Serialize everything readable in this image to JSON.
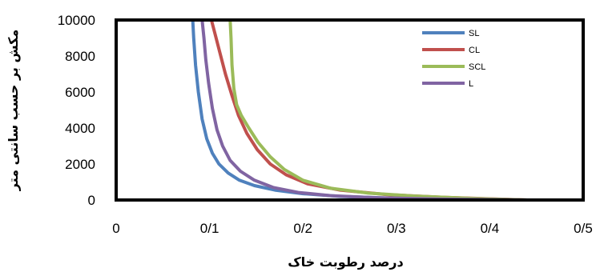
{
  "chart_data": {
    "type": "line",
    "title": "",
    "xlabel": "درصد رطوبت خاک",
    "ylabel": "مکش بر حسب سانتی متر",
    "xlim": [
      0,
      0.5
    ],
    "ylim": [
      0,
      10000
    ],
    "x_ticks": [
      "0",
      "0/1",
      "0/2",
      "0/3",
      "0/4",
      "0/5"
    ],
    "y_ticks": [
      "0",
      "2000",
      "4000",
      "6000",
      "8000",
      "10000"
    ],
    "grid": false,
    "legend_position": "top-right",
    "series": [
      {
        "name": "SL",
        "color": "#4F81BD",
        "x": [
          0.082,
          0.083,
          0.085,
          0.088,
          0.092,
          0.097,
          0.103,
          0.11,
          0.12,
          0.132,
          0.148,
          0.17,
          0.2,
          0.24,
          0.29,
          0.35,
          0.41,
          0.44
        ],
        "y": [
          10000,
          9000,
          7500,
          6000,
          4500,
          3400,
          2600,
          2000,
          1500,
          1100,
          800,
          550,
          350,
          200,
          110,
          60,
          20,
          0
        ]
      },
      {
        "name": "CL",
        "color": "#C0504D",
        "x": [
          0.102,
          0.106,
          0.111,
          0.117,
          0.124,
          0.131,
          0.14,
          0.151,
          0.165,
          0.182,
          0.205,
          0.24,
          0.29,
          0.35,
          0.41,
          0.44
        ],
        "y": [
          10000,
          9200,
          8200,
          7000,
          5800,
          4700,
          3700,
          2800,
          2000,
          1400,
          900,
          550,
          300,
          150,
          50,
          0
        ]
      },
      {
        "name": "SCL",
        "color": "#9BBB59",
        "x": [
          0.122,
          0.123,
          0.124,
          0.126,
          0.129,
          0.134,
          0.142,
          0.152,
          0.165,
          0.18,
          0.2,
          0.23,
          0.27,
          0.32,
          0.38,
          0.44
        ],
        "y": [
          10000,
          9000,
          7500,
          6200,
          5300,
          4700,
          4000,
          3200,
          2400,
          1700,
          1100,
          650,
          380,
          220,
          90,
          0
        ]
      },
      {
        "name": "L",
        "color": "#8064A2",
        "x": [
          0.092,
          0.094,
          0.096,
          0.099,
          0.103,
          0.108,
          0.114,
          0.122,
          0.133,
          0.148,
          0.168,
          0.195,
          0.23,
          0.28,
          0.35,
          0.42,
          0.44
        ],
        "y": [
          10000,
          9000,
          7800,
          6500,
          5100,
          3900,
          3000,
          2200,
          1600,
          1100,
          700,
          420,
          240,
          120,
          50,
          10,
          0
        ]
      }
    ]
  }
}
